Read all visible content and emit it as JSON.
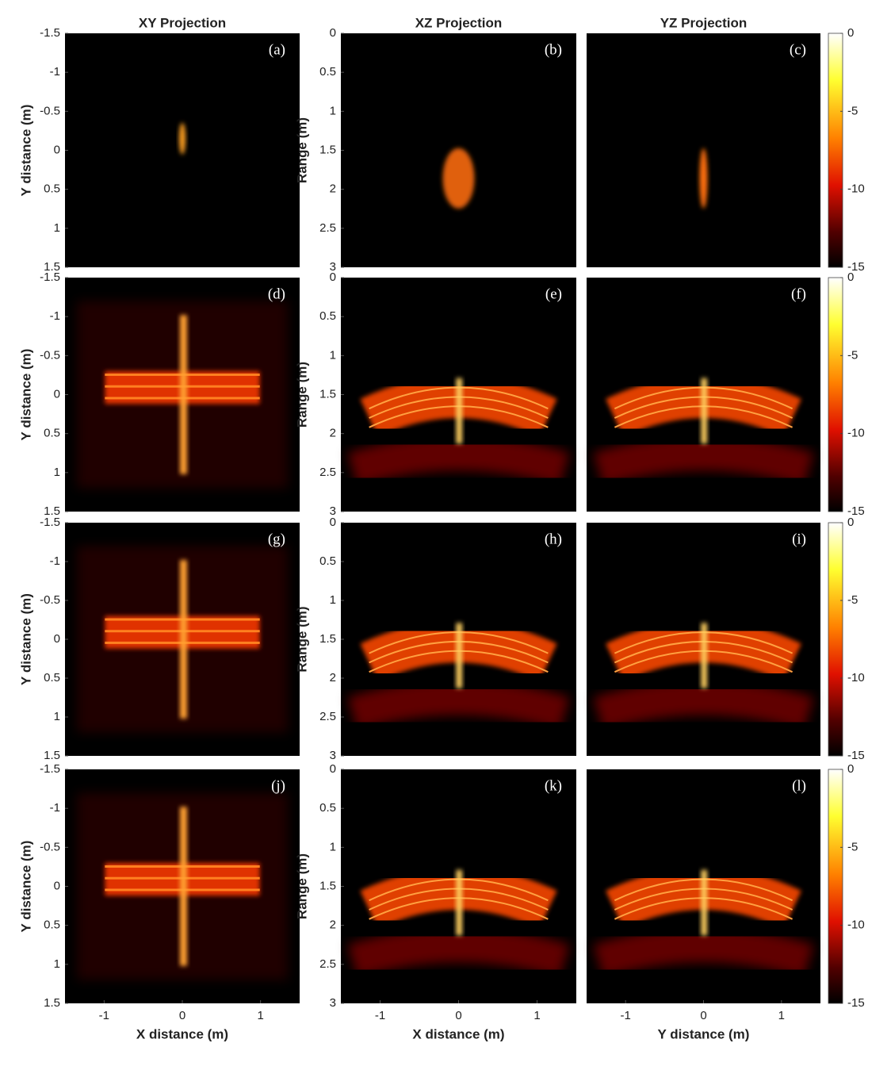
{
  "chart_data": [
    {
      "type": "heatmap",
      "title": "XY Projection",
      "label": "(a)",
      "ylabel": "Y distance (m)",
      "ylim": [
        -1.5,
        1.5
      ],
      "yticks": [
        -1.5,
        -1,
        -0.5,
        0,
        0.5,
        1,
        1.5
      ]
    },
    {
      "type": "heatmap",
      "title": "XZ Projection",
      "label": "(b)",
      "ylabel": "Range (m)",
      "ylim": [
        0,
        3
      ],
      "yticks": [
        0,
        0.5,
        1,
        1.5,
        2,
        2.5,
        3
      ]
    },
    {
      "type": "heatmap",
      "title": "YZ Projection",
      "label": "(c)",
      "colorbar": {
        "lim": [
          -15,
          0
        ],
        "ticks": [
          0,
          -5,
          -10,
          -15
        ]
      }
    },
    {
      "type": "heatmap",
      "label": "(d)",
      "ylabel": "Y distance (m)",
      "ylim": [
        -1.5,
        1.5
      ],
      "yticks": [
        -1.5,
        -1,
        -0.5,
        0,
        0.5,
        1,
        1.5
      ]
    },
    {
      "type": "heatmap",
      "label": "(e)",
      "ylabel": "Range (m)",
      "ylim": [
        0,
        3
      ],
      "yticks": [
        0,
        0.5,
        1,
        1.5,
        2,
        2.5,
        3
      ]
    },
    {
      "type": "heatmap",
      "label": "(f)",
      "colorbar": {
        "lim": [
          -15,
          0
        ],
        "ticks": [
          0,
          -5,
          -10,
          -15
        ]
      }
    },
    {
      "type": "heatmap",
      "label": "(g)",
      "ylabel": "Y distance (m)",
      "ylim": [
        -1.5,
        1.5
      ],
      "yticks": [
        -1.5,
        -1,
        -0.5,
        0,
        0.5,
        1,
        1.5
      ]
    },
    {
      "type": "heatmap",
      "label": "(h)",
      "ylabel": "Range (m)",
      "ylim": [
        0,
        3
      ],
      "yticks": [
        0,
        0.5,
        1,
        1.5,
        2,
        2.5,
        3
      ]
    },
    {
      "type": "heatmap",
      "label": "(i)",
      "colorbar": {
        "lim": [
          -15,
          0
        ],
        "ticks": [
          0,
          -5,
          -10,
          -15
        ]
      }
    },
    {
      "type": "heatmap",
      "label": "(j)",
      "ylabel": "Y distance (m)",
      "xlabel": "X distance (m)",
      "xlim": [
        -1.5,
        1.5
      ],
      "xticks": [
        -1,
        0,
        1
      ],
      "ylim": [
        -1.5,
        1.5
      ],
      "yticks": [
        -1.5,
        -1,
        -0.5,
        0,
        0.5,
        1,
        1.5
      ]
    },
    {
      "type": "heatmap",
      "label": "(k)",
      "ylabel": "Range (m)",
      "xlabel": "X distance (m)",
      "xlim": [
        -1.5,
        1.5
      ],
      "xticks": [
        -1,
        0,
        1
      ],
      "ylim": [
        0,
        3
      ],
      "yticks": [
        0,
        0.5,
        1,
        1.5,
        2,
        2.5,
        3
      ]
    },
    {
      "type": "heatmap",
      "label": "(l)",
      "xlabel": "Y distance (m)",
      "xlim": [
        -1.5,
        1.5
      ],
      "xticks": [
        -1,
        0,
        1
      ],
      "colorbar": {
        "lim": [
          -15,
          0
        ],
        "ticks": [
          0,
          -5,
          -10,
          -15
        ]
      }
    }
  ]
}
